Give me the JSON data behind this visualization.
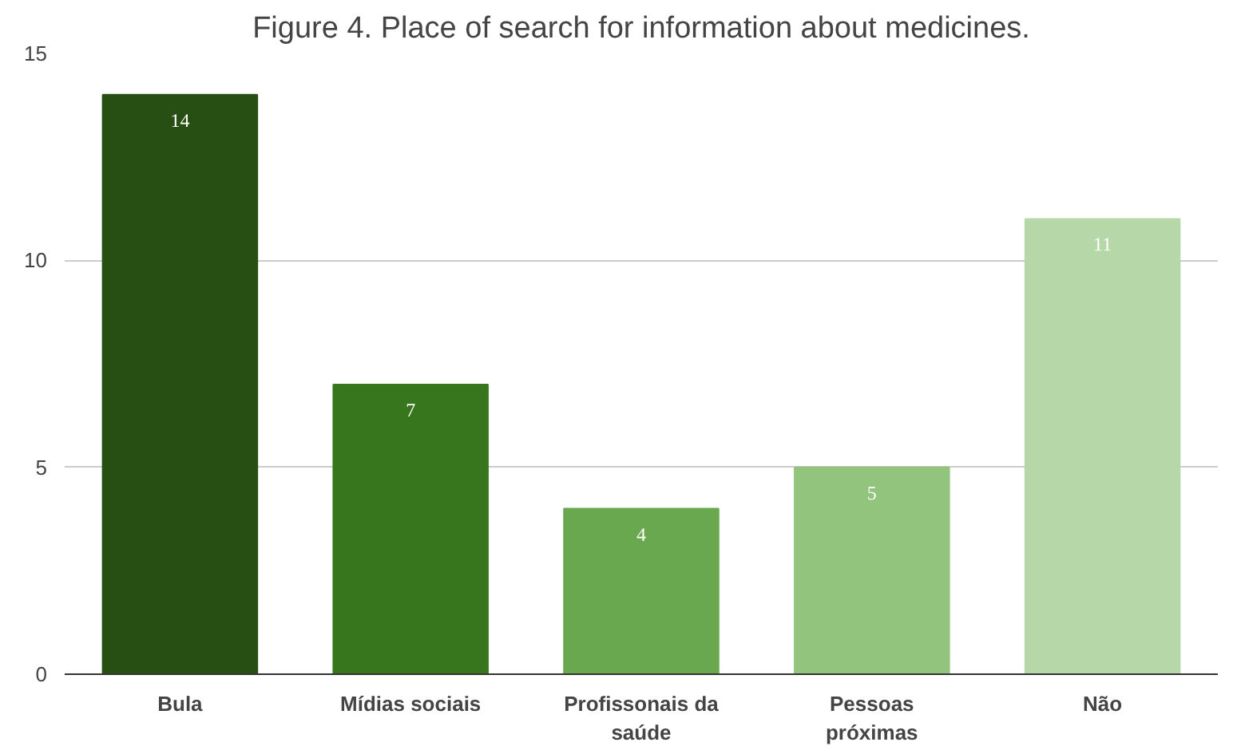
{
  "chart_data": {
    "type": "bar",
    "title": "Figure 4. Place of search for information about medicines.",
    "categories": [
      "Bula",
      "Mídias sociais",
      "Profissonais da saúde",
      "Pessoas próximas",
      "Não"
    ],
    "values": [
      14,
      7,
      4,
      5,
      11
    ],
    "colors": [
      "#274e13",
      "#38761d",
      "#6aa84f",
      "#93c47d",
      "#b6d7a8"
    ],
    "ylim": [
      0,
      15
    ],
    "yticks": [
      0,
      5,
      10,
      15
    ],
    "grid": "y",
    "data_labels": true
  }
}
